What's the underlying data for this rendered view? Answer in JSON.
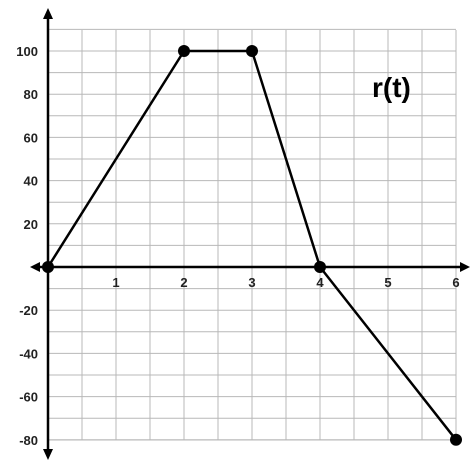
{
  "chart_data": {
    "type": "line",
    "label": "r(t)",
    "x_ticks": [
      1,
      2,
      3,
      4,
      5,
      6
    ],
    "y_ticks": [
      100,
      80,
      60,
      40,
      20,
      -20,
      -40,
      -60,
      -80
    ],
    "xlim": [
      0,
      6
    ],
    "ylim": [
      -80,
      100
    ],
    "grid": true,
    "series": [
      {
        "x": [
          0,
          2,
          3,
          4,
          6
        ],
        "y": [
          0,
          100,
          100,
          0,
          -80
        ]
      }
    ],
    "marked_points": [
      [
        0,
        0
      ],
      [
        2,
        100
      ],
      [
        3,
        100
      ],
      [
        4,
        0
      ],
      [
        6,
        -80
      ]
    ]
  }
}
